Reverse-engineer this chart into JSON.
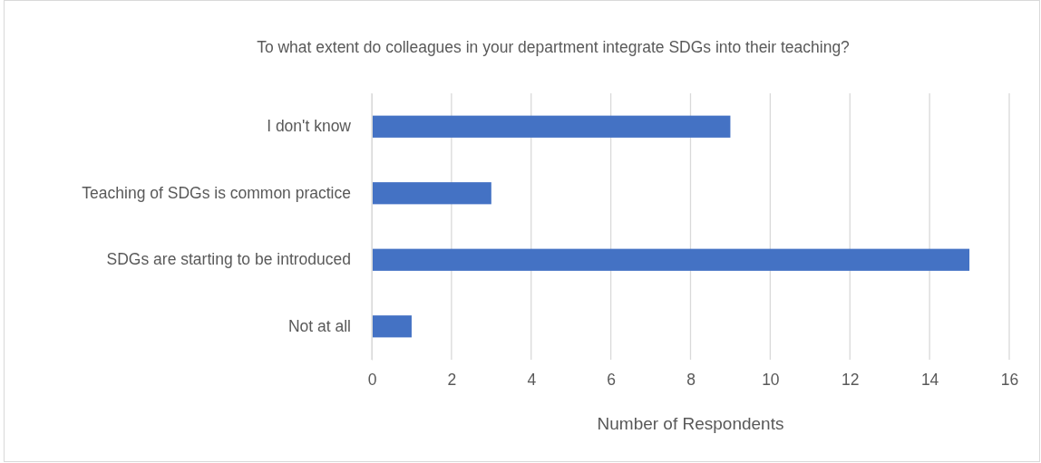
{
  "chart_data": {
    "type": "bar",
    "orientation": "horizontal",
    "title": "To what extent do colleagues in your department integrate SDGs into their teaching?",
    "xlabel": "Number of Respondents",
    "categories": [
      "I don't know",
      "Teaching of SDGs is common practice",
      "SDGs are starting to be introduced",
      "Not at all"
    ],
    "values": [
      9,
      3,
      15,
      1
    ],
    "color": "#4472c4",
    "xlim": [
      0,
      16
    ],
    "xticks": [
      0,
      2,
      4,
      6,
      8,
      10,
      12,
      14,
      16
    ],
    "grid": "x"
  }
}
